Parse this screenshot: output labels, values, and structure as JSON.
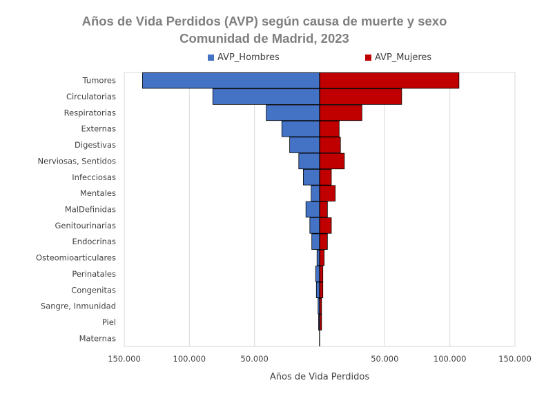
{
  "chart_data": {
    "type": "bar",
    "orientation": "horizontal",
    "layout": "population-pyramid",
    "title": "Años de Vida Perdidos (AVP) según causa de muerte y sexo",
    "subtitle": "Comunidad de Madrid, 2023",
    "xlabel": "Años de Vida Perdidos",
    "ylabel": "",
    "xlim": [
      -150000,
      150000
    ],
    "xticks": [
      -150000,
      -100000,
      -50000,
      0,
      50000,
      100000,
      150000
    ],
    "xtick_labels": [
      "150.000",
      "100.000",
      "50.000",
      "",
      "50.000",
      "100.000",
      "150.000"
    ],
    "grid": true,
    "legend_position": "top",
    "categories": [
      "Tumores",
      "Circulatorias",
      "Respiratorias",
      "Externas",
      "Digestivas",
      "Nerviosas, Sentidos",
      "Infecciosas",
      "Mentales",
      "MalDefinidas",
      "Genitourinarias",
      "Endocrinas",
      "Osteomioarticulares",
      "Perinatales",
      "Congenitas",
      "Sangre, Inmunidad",
      "Piel",
      "Maternas"
    ],
    "series": [
      {
        "name": "AVP_Hombres",
        "color": "#4472c4",
        "side": "left",
        "values": [
          136000,
          82000,
          41000,
          29000,
          23000,
          16000,
          12500,
          6500,
          10500,
          7500,
          6000,
          2000,
          3000,
          2500,
          1200,
          800,
          100
        ]
      },
      {
        "name": "AVP_Mujeres",
        "color": "#c00000",
        "side": "right",
        "values": [
          107000,
          63000,
          32500,
          15000,
          16000,
          19000,
          9000,
          12000,
          6000,
          9000,
          6000,
          3500,
          2500,
          2500,
          1500,
          1500,
          0
        ]
      }
    ]
  }
}
